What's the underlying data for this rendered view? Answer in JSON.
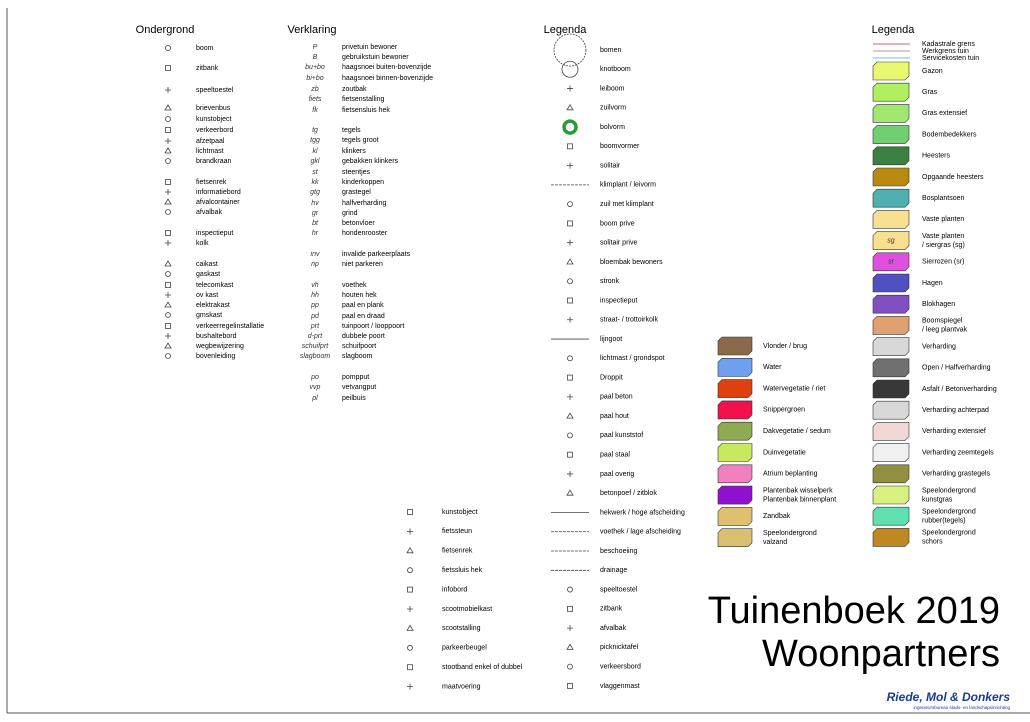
{
  "ondergrond": {
    "title": "Ondergrond",
    "items": [
      "boom",
      "zitbank",
      "speeltoestel",
      "brievenbus",
      "kunstobject",
      "verkeerbord",
      "afzetpaal",
      "lichtmast",
      "brandkraan",
      "fietsenrek",
      "informatiebord",
      "afvalcontainer",
      "afvalbak",
      "inspectieput",
      "kolk",
      "caikast",
      "gaskast",
      "telecomkast",
      "ov kast",
      "elektrakast",
      "gmskast",
      "verkeerregelinstallatie",
      "bushaltebord",
      "wegbewijzering",
      "bovenleiding"
    ]
  },
  "verklaring": {
    "title": "Verklaring",
    "items": [
      [
        "P",
        "privetuin bewoner"
      ],
      [
        "B",
        "gebruikstuin bewoner"
      ],
      [
        "bu+bo",
        "haagsnoei buiten-bovenzijde"
      ],
      [
        "bi+bo",
        "haagsnoei binnen-bovenzijde"
      ],
      [
        "zb",
        "zoutbak"
      ],
      [
        "fiets",
        "fietsenstalling"
      ],
      [
        "fk",
        "fietsensluis hek"
      ],
      [
        "tg",
        "tegels"
      ],
      [
        "tgg",
        "tegels groot"
      ],
      [
        "kl",
        "klinkers"
      ],
      [
        "gkl",
        "gebakken klinkers"
      ],
      [
        "st",
        "steentjes"
      ],
      [
        "kk",
        "kinderkoppen"
      ],
      [
        "gtg",
        "grastegel"
      ],
      [
        "hv",
        "halfverharding"
      ],
      [
        "gr",
        "grind"
      ],
      [
        "bt",
        "betonvloer"
      ],
      [
        "hr",
        "hondenrooster"
      ],
      [
        "inv",
        "invalide parkeerplaats"
      ],
      [
        "np",
        "niet parkeren"
      ],
      [
        "vh",
        "voethek"
      ],
      [
        "hh",
        "houten hek"
      ],
      [
        "pp",
        "paal en plank"
      ],
      [
        "pd",
        "paal en draad"
      ],
      [
        "prt",
        "tuinpoort / looppoort"
      ],
      [
        "d-prt",
        "dubbele poort"
      ],
      [
        "schuifprt",
        "schuifpoort"
      ],
      [
        "slagboom",
        "slagboom"
      ],
      [
        "po",
        "pompput"
      ],
      [
        "vvp",
        "vetvangput"
      ],
      [
        "pl",
        "peilbuis"
      ]
    ]
  },
  "legenda": {
    "title": "Legenda",
    "items": [
      "bomen",
      "knotboom",
      "leiboom",
      "zuilvorm",
      "bolvorm",
      "boomvormer",
      "solitair",
      "klimplant / leivorm",
      "zuil met klimplant",
      "boom prive",
      "solitair prive",
      "bloembak bewoners",
      "stronk",
      "inspectieput",
      "straat- / trottoirkolk",
      "lijngoot",
      "lichtmast / grondspot",
      "Droppit",
      "paal beton",
      "paal hout",
      "paal kunststof",
      "paal staal",
      "paal overig",
      "betonpoef / zitblok",
      "hekwerk / hoge afscheiding",
      "voethek / lage afscheiding",
      "beschoeiing",
      "drainage",
      "speeltoestel",
      "zitbank",
      "afvalbak",
      "picknicktafel",
      "verkeersbord",
      "vlaggenmast"
    ]
  },
  "symbolen": {
    "items": [
      "kunstobject",
      "fietssteun",
      "fietsenrek",
      "fietssluis hek",
      "infobord",
      "scootmobielkast",
      "scootstalling",
      "parkeerbeugel",
      "stootband enkel of dubbel",
      "maatvoering"
    ]
  },
  "vlakken": {
    "items": [
      {
        "label": [
          "Vlonder / brug"
        ],
        "color": "#8a6a4a"
      },
      {
        "label": [
          "Water"
        ],
        "color": "#6fa0f0"
      },
      {
        "label": [
          "Watervegetatie / riet"
        ],
        "color": "#e04010"
      },
      {
        "label": [
          "Snippergroen"
        ],
        "color": "#f0104a"
      },
      {
        "label": [
          "Dakvegetatie / sedum"
        ],
        "color": "#8faa50"
      },
      {
        "label": [
          "Duinvegetatie"
        ],
        "color": "#c8e860"
      },
      {
        "label": [
          "Atrium beplanting"
        ],
        "color": "#f080c0"
      },
      {
        "label": [
          "Plantenbak wisselperk",
          "Plantenbak binnenplant"
        ],
        "color": "#9010d0"
      },
      {
        "label": [
          "Zandbak"
        ],
        "color": "#e0c070"
      },
      {
        "label": [
          "Speelondergrond",
          "valzand"
        ],
        "color": "#d8c070"
      }
    ]
  },
  "legenda2": {
    "title": "Legenda",
    "lines": [
      "Kadastrale grens",
      "Werkgrens tuin",
      "Servicekosten tuin"
    ],
    "items": [
      {
        "label": [
          "Gazon"
        ],
        "color": "#e8f870"
      },
      {
        "label": [
          "Gras"
        ],
        "color": "#b0f060"
      },
      {
        "label": [
          "Gras extensief"
        ],
        "color": "#a0e870"
      },
      {
        "label": [
          "Bodembedekkers"
        ],
        "color": "#70d070"
      },
      {
        "label": [
          "Heesters"
        ],
        "color": "#3a8040"
      },
      {
        "label": [
          "Opgaande heesters"
        ],
        "color": "#b88a10"
      },
      {
        "label": [
          "Bosplantsoen"
        ],
        "color": "#50b0b0"
      },
      {
        "label": [
          "Vaste planten"
        ],
        "color": "#f8e090"
      },
      {
        "label": [
          "Vaste planten",
          "/ siergras (sg)"
        ],
        "color": "#f8e090",
        "code": "sg"
      },
      {
        "label": [
          "Sierrozen (sr)"
        ],
        "color": "#e050e0",
        "code": "sr"
      },
      {
        "label": [
          "Hagen"
        ],
        "color": "#5050c0"
      },
      {
        "label": [
          "Blokhagen"
        ],
        "color": "#8050c0"
      },
      {
        "label": [
          "Boomspiegel",
          "/ leeg plantvak"
        ],
        "color": "#e0a070"
      },
      {
        "label": [
          "Verharding"
        ],
        "color": "#d8d8d8"
      },
      {
        "label": [
          "Open / Halfverharding"
        ],
        "color": "#707070"
      },
      {
        "label": [
          "Asfalt / Betonverharding"
        ],
        "color": "#383838"
      },
      {
        "label": [
          "Verharding achterpad"
        ],
        "color": "#d8d8d8"
      },
      {
        "label": [
          "Verharding extensief"
        ],
        "color": "#f0d8d8"
      },
      {
        "label": [
          "Verharding zeemtegels"
        ],
        "color": "#f0f0f0"
      },
      {
        "label": [
          "Verharding grastegels"
        ],
        "color": "#909040"
      },
      {
        "label": [
          "Speelondergrond",
          "kunstgras"
        ],
        "color": "#d8f080"
      },
      {
        "label": [
          "Speelondergrond",
          "rubber(tegels)"
        ],
        "color": "#60e0b0"
      },
      {
        "label": [
          "Speelondergrond",
          "schors"
        ],
        "color": "#c08820"
      }
    ]
  },
  "titel": {
    "line1": "Tuinenboek 2019",
    "line2": "Woonpartners"
  },
  "logo": {
    "name": "Riede, Mol & Donkers",
    "subtitle": "ingenieursbureau stads- en landschapsinrichting"
  }
}
